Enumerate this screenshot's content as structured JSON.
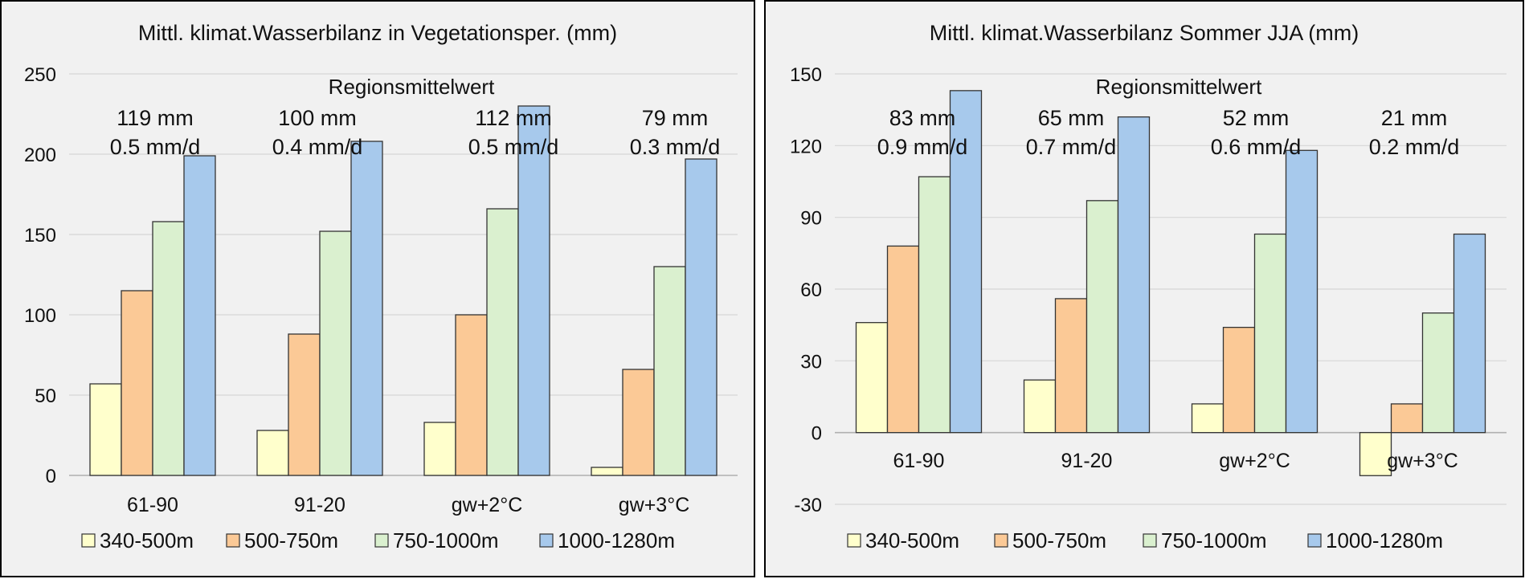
{
  "legend": [
    {
      "label": "340-500m",
      "color": "#ffffcc"
    },
    {
      "label": "500-750m",
      "color": "#fbc996"
    },
    {
      "label": "750-1000m",
      "color": "#daf0cf"
    },
    {
      "label": "1000-1280m",
      "color": "#a7c9ec"
    }
  ],
  "chart_data": [
    {
      "type": "bar",
      "title": "Mittl. klimat.Wasserbilanz in Vegetationsper. (mm)",
      "annotation_title": "Regionsmittelwert",
      "categories": [
        "61-90",
        "91-20",
        "gw+2°C",
        "gw+3°C"
      ],
      "annotations": [
        {
          "total": "119 mm",
          "rate": "0.5 mm/d"
        },
        {
          "total": "100 mm",
          "rate": "0.4 mm/d"
        },
        {
          "total": "112 mm",
          "rate": "0.5 mm/d"
        },
        {
          "total": "79 mm",
          "rate": "0.3 mm/d"
        }
      ],
      "series": [
        {
          "name": "340-500m",
          "values": [
            57,
            28,
            33,
            5
          ]
        },
        {
          "name": "500-750m",
          "values": [
            115,
            88,
            100,
            66
          ]
        },
        {
          "name": "750-1000m",
          "values": [
            158,
            152,
            166,
            130
          ]
        },
        {
          "name": "1000-1280m",
          "values": [
            199,
            208,
            230,
            197
          ]
        }
      ],
      "ylim": [
        0,
        250
      ],
      "yticks": [
        "0",
        "50",
        "100",
        "150",
        "200",
        "250"
      ],
      "grid": true,
      "xlabel": "",
      "ylabel": ""
    },
    {
      "type": "bar",
      "title": "Mittl. klimat.Wasserbilanz Sommer JJA (mm)",
      "annotation_title": "Regionsmittelwert",
      "categories": [
        "61-90",
        "91-20",
        "gw+2°C",
        "gw+3°C"
      ],
      "annotations": [
        {
          "total": "83 mm",
          "rate": "0.9 mm/d"
        },
        {
          "total": "65 mm",
          "rate": "0.7 mm/d"
        },
        {
          "total": "52 mm",
          "rate": "0.6 mm/d"
        },
        {
          "total": "21 mm",
          "rate": "0.2 mm/d"
        }
      ],
      "series": [
        {
          "name": "340-500m",
          "values": [
            46,
            22,
            12,
            -18
          ]
        },
        {
          "name": "500-750m",
          "values": [
            78,
            56,
            44,
            12
          ]
        },
        {
          "name": "750-1000m",
          "values": [
            107,
            97,
            83,
            50
          ]
        },
        {
          "name": "1000-1280m",
          "values": [
            143,
            132,
            118,
            83
          ]
        }
      ],
      "ylim": [
        -30,
        150
      ],
      "yticks": [
        "-30",
        "0",
        "30",
        "60",
        "90",
        "120",
        "150"
      ],
      "grid": true,
      "xlabel": "",
      "ylabel": ""
    }
  ]
}
